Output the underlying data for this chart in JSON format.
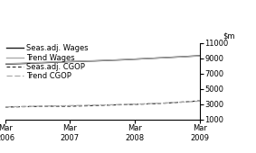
{
  "ylim": [
    1000,
    11000
  ],
  "yticks": [
    1000,
    3000,
    5000,
    7000,
    9000,
    11000
  ],
  "x_labels": [
    "Mar\n2006",
    "Mar\n2007",
    "Mar\n2008",
    "Mar\n2009"
  ],
  "x_positions": [
    0,
    4,
    8,
    12
  ],
  "seas_wages": [
    8200,
    8280,
    8360,
    8440,
    8520,
    8580,
    8640,
    8720,
    8800,
    8900,
    9000,
    9100,
    9200,
    9320
  ],
  "trend_wages": [
    8250,
    8330,
    8410,
    8490,
    8550,
    8600,
    8670,
    8740,
    8820,
    8910,
    8990,
    9080,
    9180,
    9290
  ],
  "seas_cgop": [
    2600,
    2650,
    2680,
    2720,
    2700,
    2750,
    2800,
    2870,
    2920,
    2980,
    3050,
    3150,
    3280,
    3420
  ],
  "trend_cgop": [
    2630,
    2670,
    2710,
    2750,
    2780,
    2820,
    2860,
    2900,
    2950,
    3010,
    3080,
    3170,
    3270,
    3380
  ],
  "color_black": "#1a1a1a",
  "color_gray": "#aaaaaa",
  "color_dark_dashed": "#333333",
  "color_gray_dashed": "#aaaaaa",
  "legend_labels": [
    "Seas.adj. Wages",
    "Trend Wages",
    "Seas.adj. CGOP",
    "Trend CGOP"
  ],
  "fontsize": 6.0
}
